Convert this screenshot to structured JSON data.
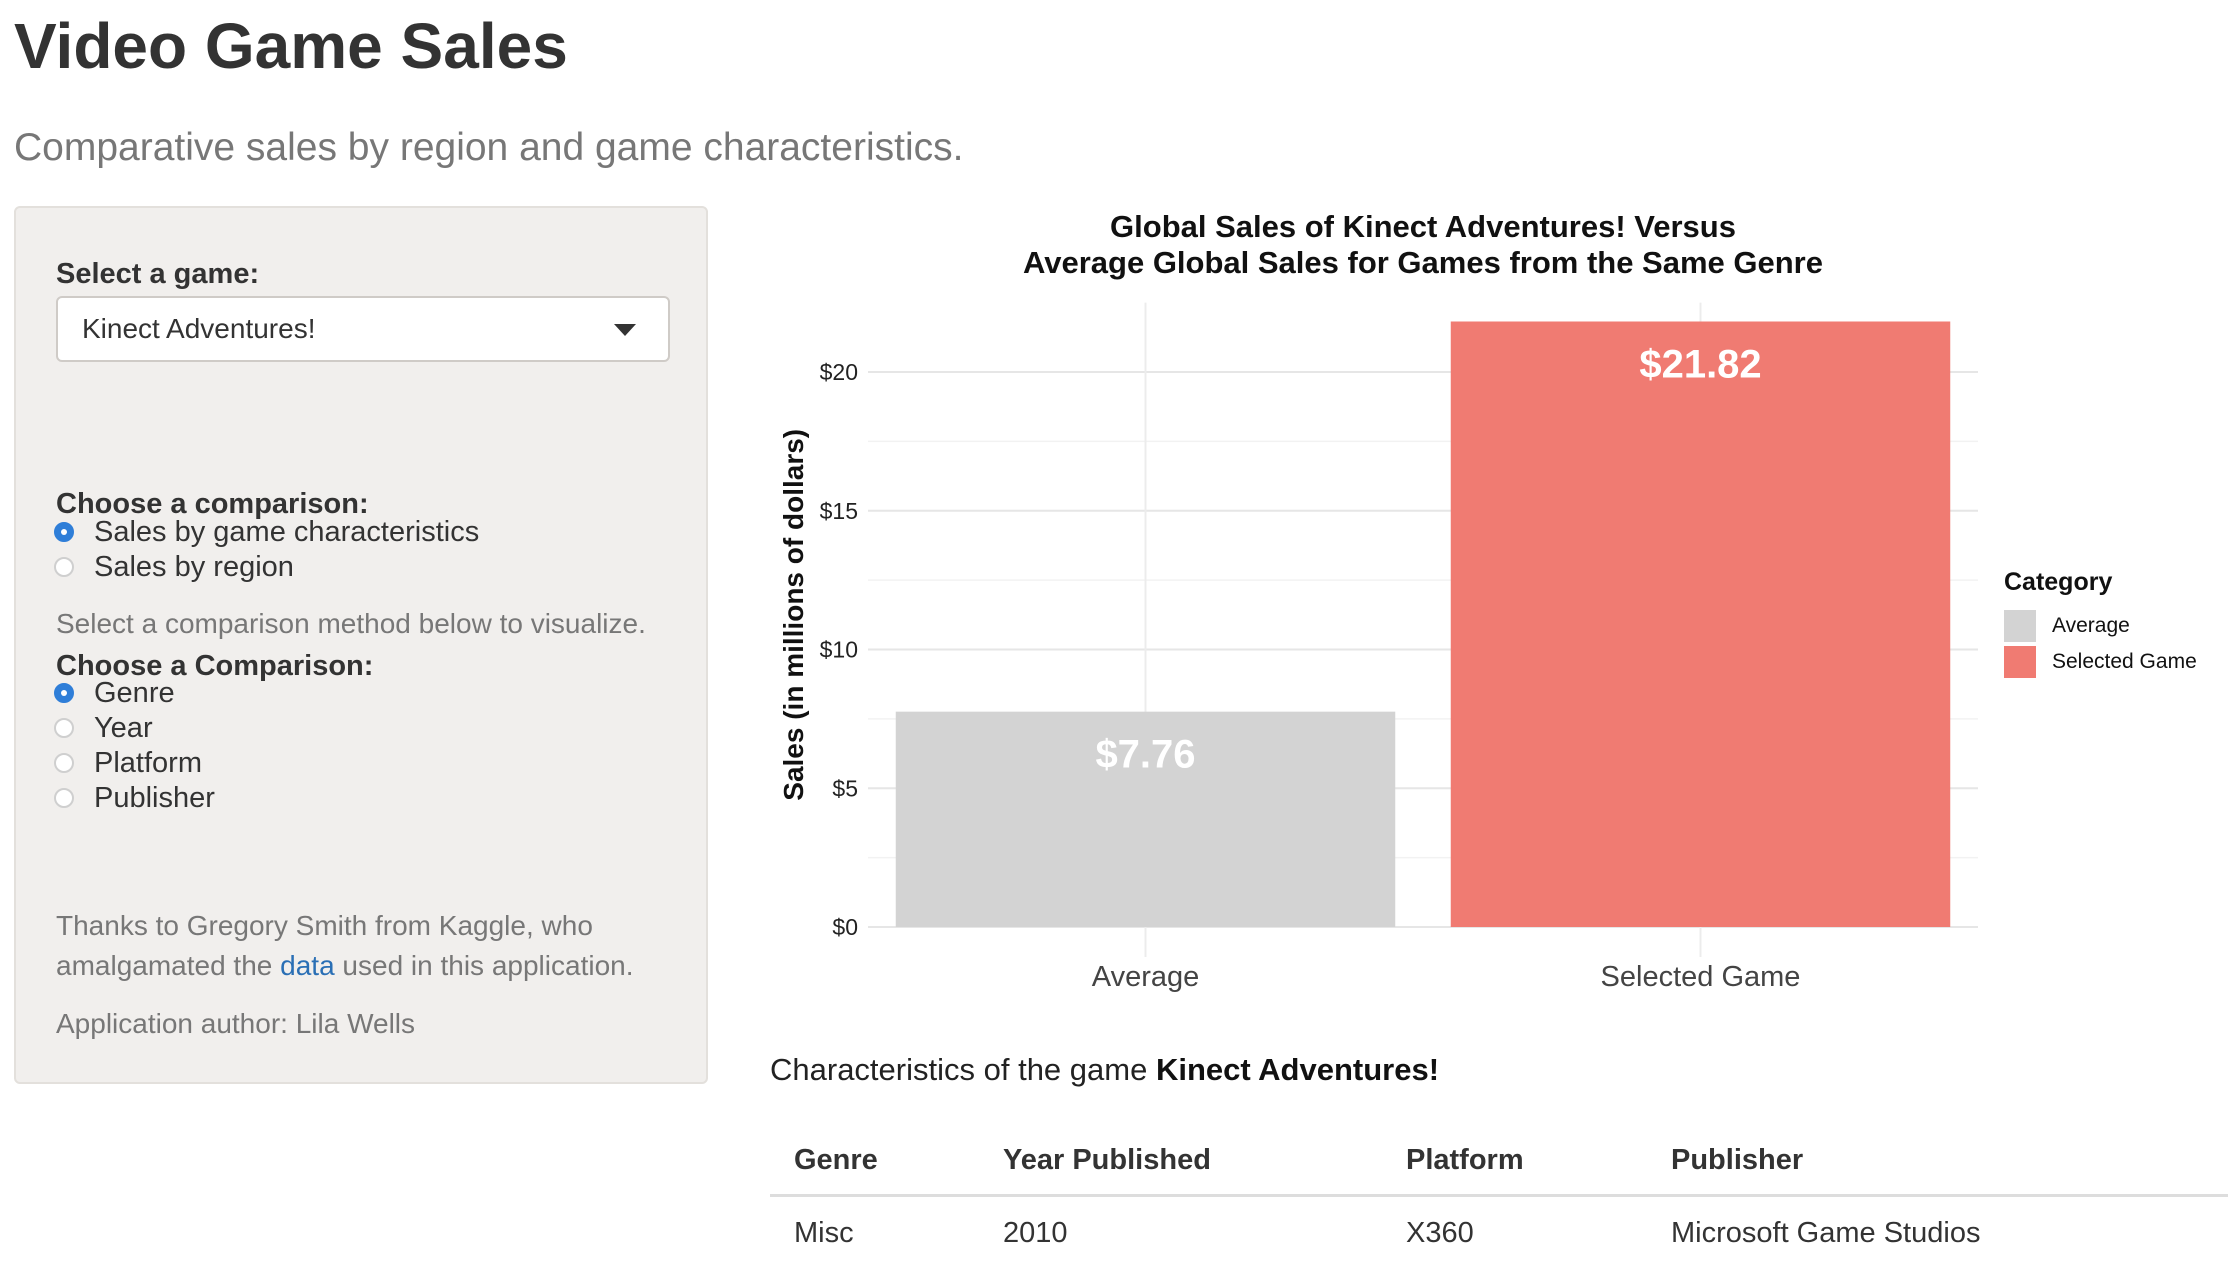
{
  "page": {
    "title": "Video Game Sales",
    "subtitle": "Comparative sales by region and game characteristics."
  },
  "sidebar": {
    "select_label": "Select a game:",
    "selected_game": "Kinect Adventures!",
    "comparison_label": "Choose a comparison:",
    "comparison_options": [
      {
        "label": "Sales by game characteristics",
        "selected": true
      },
      {
        "label": "Sales by region",
        "selected": false
      }
    ],
    "help_text": "Select a comparison method below to visualize.",
    "comparison2_label": "Choose a Comparison:",
    "comparison2_options": [
      {
        "label": "Genre",
        "selected": true
      },
      {
        "label": "Year",
        "selected": false
      },
      {
        "label": "Platform",
        "selected": false
      },
      {
        "label": "Publisher",
        "selected": false
      }
    ],
    "thanks_before": "Thanks to Gregory Smith from Kaggle, who amalgamated the ",
    "thanks_link": "data",
    "thanks_after": " used in this application.",
    "author": "Application author: Lila Wells"
  },
  "chart_data": {
    "type": "bar",
    "title": "Global Sales of Kinect Adventures! Versus",
    "subtitle": "Average Global Sales for Games from the Same Genre",
    "xlabel": "",
    "ylabel": "Sales (in millions of dollars)",
    "categories": [
      "Average",
      "Selected Game"
    ],
    "values": [
      7.76,
      21.82
    ],
    "value_labels": [
      "$7.76",
      "$21.82"
    ],
    "colors": [
      "#d3d3d3",
      "#f07b72"
    ],
    "ylim": [
      0,
      22.5
    ],
    "yticks": [
      0,
      5,
      10,
      15,
      20
    ],
    "ytick_labels": [
      "$0",
      "$5",
      "$10",
      "$15",
      "$20"
    ],
    "grid": true,
    "legend": {
      "title": "Category",
      "position": "right",
      "entries": [
        {
          "label": "Average",
          "color": "#d3d3d3"
        },
        {
          "label": "Selected Game",
          "color": "#f07b72"
        }
      ]
    }
  },
  "characteristics": {
    "heading_prefix": "Characteristics of the game ",
    "game": "Kinect Adventures!",
    "columns": [
      "Genre",
      "Year Published",
      "Platform",
      "Publisher"
    ],
    "row": [
      "Misc",
      "2010",
      "X360",
      "Microsoft Game Studios"
    ]
  }
}
